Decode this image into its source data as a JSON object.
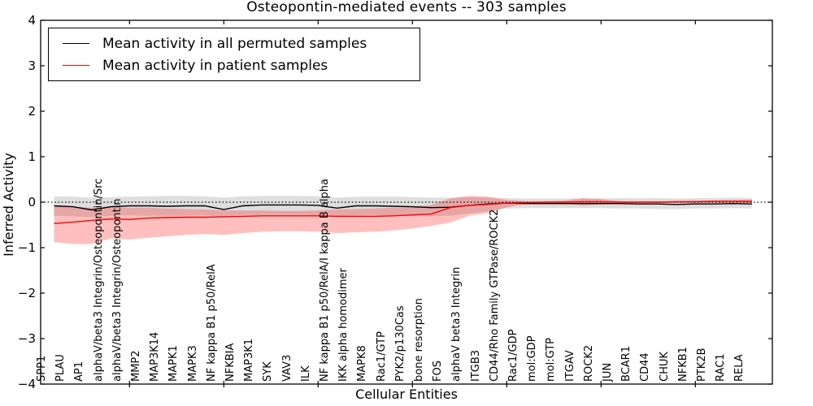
{
  "chart_data": {
    "type": "line",
    "title": "Osteopontin-mediated events -- 303 samples",
    "xlabel": "Cellular Entities",
    "ylabel": "Inferred Activity",
    "ylim": [
      -4,
      4
    ],
    "yticks": [
      4,
      3,
      2,
      1,
      0,
      -1,
      -2,
      -3,
      -4
    ],
    "ytick_labels": [
      "4",
      "3",
      "2",
      "1",
      "0",
      "−1",
      "−2",
      "−3",
      "−4"
    ],
    "grid": false,
    "legend_position": "upper-left",
    "zero_reference_line": {
      "y": 0,
      "style": "dotted",
      "color": "#000000"
    },
    "xtick_every": 5,
    "categories": [
      "SPP1",
      "PLAU",
      "AP1",
      "alphaV/beta3 Integrin/Osteopontin/Src",
      "alphaV/beta3 Integrin/Osteopontin",
      "MMP2",
      "MAP3K14",
      "MAPK1",
      "MAPK3",
      "NF kappa B1 p50/RelA",
      "NFKBIA",
      "MAP3K1",
      "SYK",
      "VAV3",
      "ILK",
      "NF kappa B1 p50/RelA/I kappa B alpha",
      "IKK alpha homodimer",
      "MAPK8",
      "Rac1/GTP",
      "PYK2/p130Cas",
      "bone resorption",
      "FOS",
      "alphaV beta3 Integrin",
      "ITGB3",
      "CD44/Rho Family GTPase/ROCK2",
      "Rac1/GDP",
      "mol:GDP",
      "mol:GTP",
      "ITGAV",
      "ROCK2",
      "JUN",
      "BCAR1",
      "CD44",
      "CHUK",
      "NFKB1",
      "PTK2B",
      "RAC1",
      "RELA"
    ],
    "series": [
      {
        "name": "Mean activity in all permuted samples",
        "color": "#000000",
        "band_color": "rgba(0,0,0,0.13)",
        "values": [
          -0.08,
          -0.1,
          -0.17,
          -0.1,
          -0.08,
          -0.08,
          -0.09,
          -0.08,
          -0.08,
          -0.16,
          -0.08,
          -0.06,
          -0.06,
          -0.06,
          -0.07,
          -0.13,
          -0.08,
          -0.08,
          -0.09,
          -0.1,
          -0.12,
          -0.11,
          -0.07,
          -0.04,
          -0.02,
          -0.03,
          -0.03,
          -0.03,
          -0.03,
          -0.03,
          -0.03,
          -0.04,
          -0.04,
          -0.05,
          -0.04,
          -0.04,
          -0.03,
          -0.04
        ],
        "band_upper": [
          0.13,
          0.12,
          0.1,
          0.11,
          0.12,
          0.13,
          0.14,
          0.14,
          0.13,
          0.1,
          0.13,
          0.14,
          0.14,
          0.14,
          0.13,
          0.1,
          0.12,
          0.12,
          0.12,
          0.11,
          0.1,
          0.1,
          0.11,
          0.1,
          0.09,
          0.08,
          0.08,
          0.08,
          0.08,
          0.08,
          0.09,
          0.09,
          0.09,
          0.08,
          0.09,
          0.09,
          0.1,
          0.09
        ],
        "band_lower": [
          -0.3,
          -0.31,
          -0.33,
          -0.3,
          -0.29,
          -0.3,
          -0.3,
          -0.3,
          -0.29,
          -0.32,
          -0.28,
          -0.27,
          -0.27,
          -0.27,
          -0.28,
          -0.31,
          -0.29,
          -0.29,
          -0.29,
          -0.3,
          -0.31,
          -0.3,
          -0.25,
          -0.2,
          -0.14,
          -0.13,
          -0.13,
          -0.13,
          -0.13,
          -0.13,
          -0.14,
          -0.14,
          -0.15,
          -0.15,
          -0.14,
          -0.14,
          -0.13,
          -0.14
        ]
      },
      {
        "name": "Mean activity in patient samples",
        "color": "#ff0000",
        "band_color": "rgba(255,0,0,0.25)",
        "values": [
          -0.47,
          -0.44,
          -0.4,
          -0.37,
          -0.38,
          -0.35,
          -0.34,
          -0.33,
          -0.33,
          -0.32,
          -0.31,
          -0.3,
          -0.3,
          -0.3,
          -0.3,
          -0.31,
          -0.31,
          -0.31,
          -0.3,
          -0.28,
          -0.26,
          -0.12,
          -0.07,
          -0.05,
          -0.02,
          -0.01,
          0.0,
          0.0,
          0.01,
          0.01,
          0.0,
          0.0,
          0.0,
          0.01,
          0.01,
          0.02,
          0.02,
          0.02
        ],
        "band_upper": [
          -0.08,
          -0.1,
          -0.12,
          -0.1,
          -0.12,
          -0.12,
          -0.14,
          -0.15,
          -0.16,
          -0.18,
          -0.18,
          -0.18,
          -0.19,
          -0.19,
          -0.18,
          -0.16,
          -0.15,
          -0.14,
          -0.12,
          -0.1,
          -0.06,
          0.08,
          0.14,
          0.12,
          0.05,
          0.02,
          0.02,
          0.03,
          0.09,
          0.07,
          0.02,
          0.02,
          0.02,
          0.02,
          0.03,
          0.04,
          0.05,
          0.06
        ],
        "band_lower": [
          -0.88,
          -0.92,
          -0.92,
          -0.8,
          -0.82,
          -0.78,
          -0.75,
          -0.72,
          -0.7,
          -0.72,
          -0.68,
          -0.65,
          -0.64,
          -0.64,
          -0.65,
          -0.68,
          -0.66,
          -0.65,
          -0.62,
          -0.58,
          -0.52,
          -0.45,
          -0.3,
          -0.24,
          -0.11,
          -0.04,
          -0.03,
          -0.03,
          -0.07,
          -0.05,
          -0.02,
          -0.02,
          -0.02,
          -0.02,
          -0.02,
          -0.01,
          -0.01,
          -0.02
        ]
      }
    ]
  }
}
